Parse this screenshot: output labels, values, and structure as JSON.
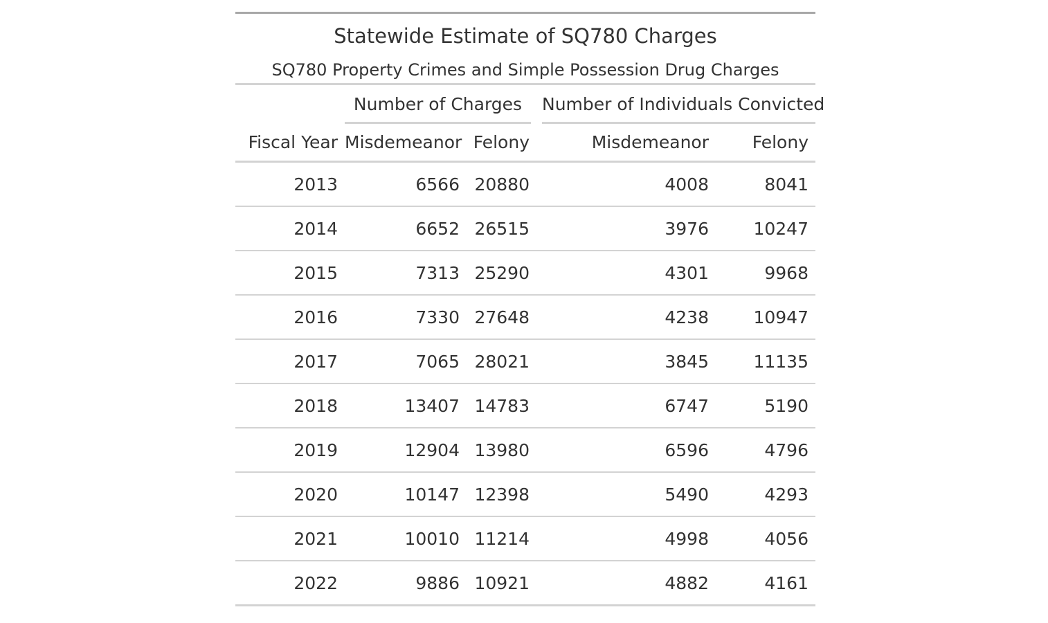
{
  "chart_data": {
    "type": "table",
    "title": "Statewide Estimate of SQ780 Charges",
    "subtitle": "SQ780 Property Crimes and Simple Possession Drug Charges",
    "spanners": [
      "Number of Charges",
      "Number of Individuals Convicted"
    ],
    "columns": [
      "Fiscal Year",
      "Misdemeanor",
      "Felony",
      "Misdemeanor",
      "Felony"
    ],
    "rows": [
      [
        "2013",
        "6566",
        "20880",
        "4008",
        "8041"
      ],
      [
        "2014",
        "6652",
        "26515",
        "3976",
        "10247"
      ],
      [
        "2015",
        "7313",
        "25290",
        "4301",
        "9968"
      ],
      [
        "2016",
        "7330",
        "27648",
        "4238",
        "10947"
      ],
      [
        "2017",
        "7065",
        "28021",
        "3845",
        "11135"
      ],
      [
        "2018",
        "13407",
        "14783",
        "6747",
        "5190"
      ],
      [
        "2019",
        "12904",
        "13980",
        "6596",
        "4796"
      ],
      [
        "2020",
        "10147",
        "12398",
        "5490",
        "4293"
      ],
      [
        "2021",
        "10010",
        "11214",
        "4998",
        "4056"
      ],
      [
        "2022",
        "9886",
        "10921",
        "4882",
        "4161"
      ]
    ]
  }
}
